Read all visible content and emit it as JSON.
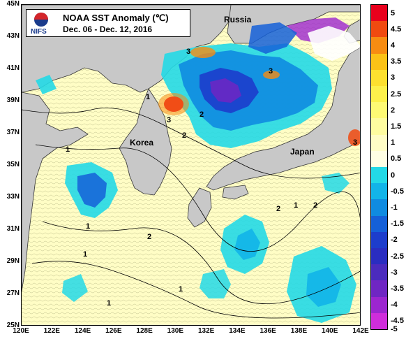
{
  "title": {
    "logo_text": "NIFS",
    "line1": "NOAA SST Anomaly (℃)",
    "line2": "Dec. 06 - Dec. 12, 2016"
  },
  "places": {
    "russia": "Russia",
    "korea": "Korea",
    "japan": "Japan"
  },
  "latitude_labels": [
    "45N",
    "43N",
    "41N",
    "39N",
    "37N",
    "35N",
    "33N",
    "31N",
    "29N",
    "27N",
    "25N"
  ],
  "longitude_labels": [
    "120E",
    "122E",
    "124E",
    "126E",
    "128E",
    "130E",
    "132E",
    "134E",
    "136E",
    "138E",
    "140E",
    "142E"
  ],
  "contour_labels": [
    "3",
    "3",
    "3",
    "1",
    "2",
    "1",
    "1",
    "2",
    "1",
    "1",
    "1",
    "2",
    "1",
    "2",
    "3",
    "2"
  ],
  "colorbar": {
    "labels": [
      "5",
      "4.5",
      "4",
      "3.5",
      "3",
      "2.5",
      "2",
      "1.5",
      "1",
      "0.5",
      "0",
      "-0.5",
      "-1",
      "-1.5",
      "-2",
      "-2.5",
      "-3",
      "-3.5",
      "-4",
      "-4.5",
      "-5"
    ],
    "colors": [
      "#e8001c",
      "#f04a10",
      "#f78c12",
      "#fbc217",
      "#fde02f",
      "#fdf14b",
      "#fefa74",
      "#fefca0",
      "#fffdc6",
      "#fffee4",
      "#23d9e6",
      "#12b4e8",
      "#0f8be0",
      "#1560d8",
      "#1d3dcc",
      "#2a2dc0",
      "#4b2bbd",
      "#6f26c3",
      "#9c26cf",
      "#cf2ddb"
    ]
  },
  "colors": {
    "land": "#c8c8c8",
    "sea_warm": "#fffee4",
    "sea_mid": "#fefca0",
    "cold_patch": "#23d9e6",
    "blue_patch": "#0f8be0",
    "deep_blue": "#1d3dcc",
    "hot_patch": "#e8001c",
    "orange_patch": "#f78c12"
  }
}
